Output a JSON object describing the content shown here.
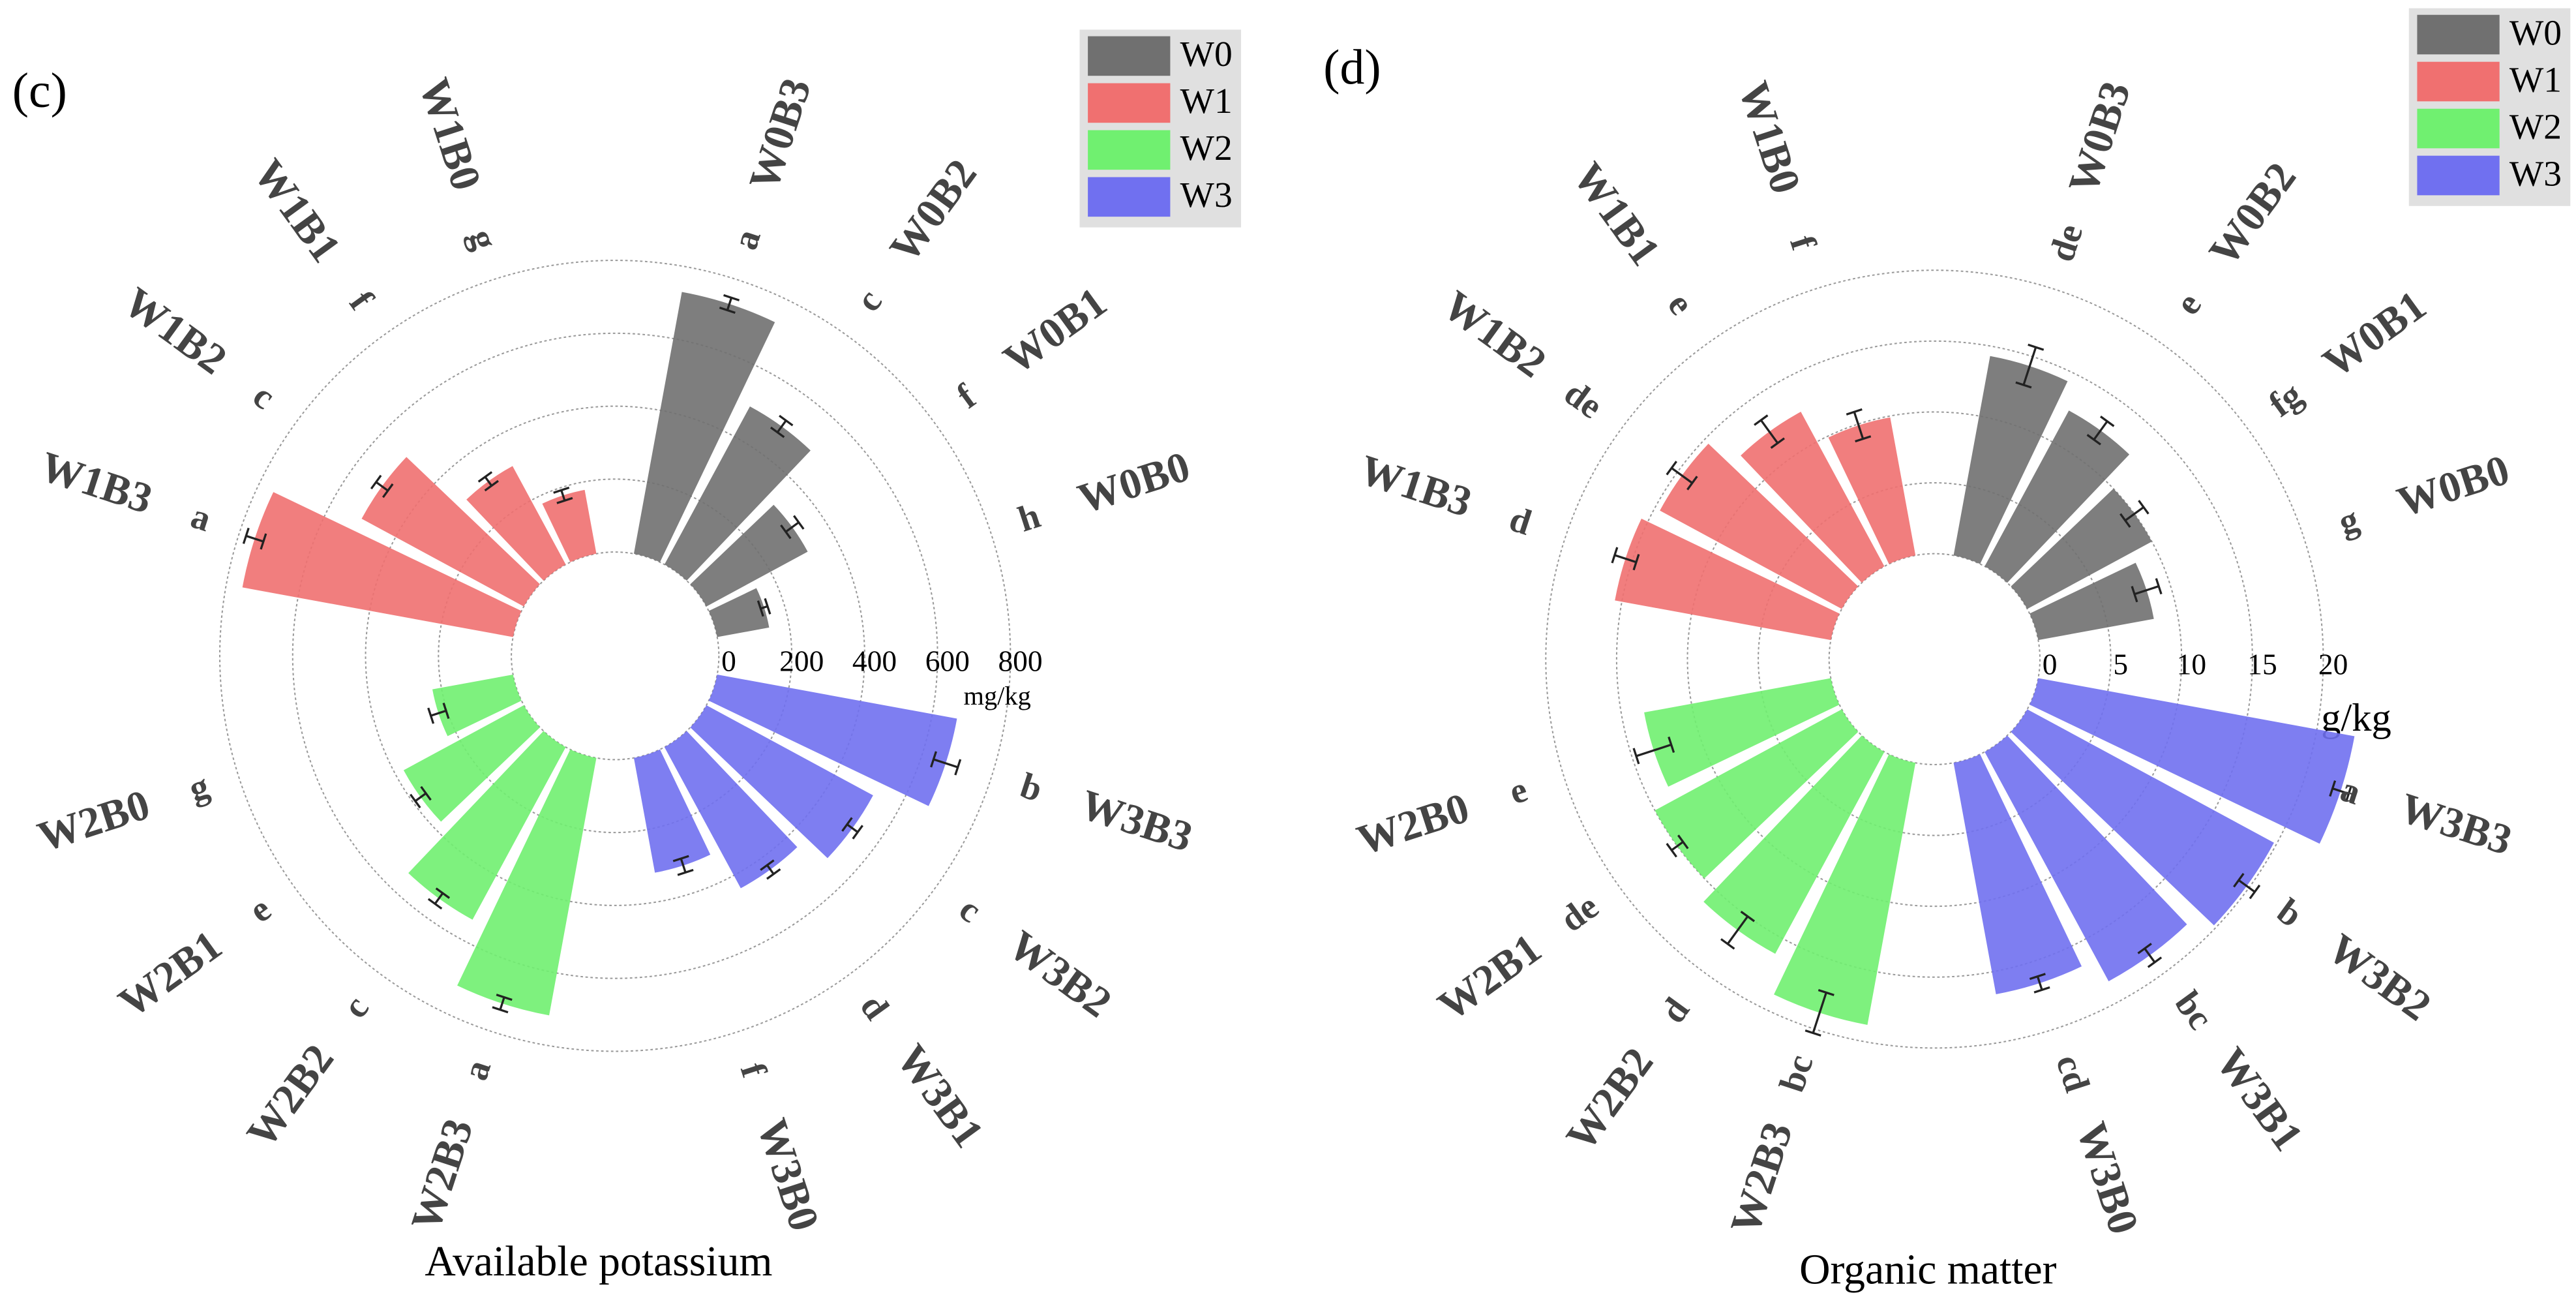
{
  "chart_data": [
    {
      "type": "polar_bar",
      "panel": "(c)",
      "title": "Available potassium",
      "unit": "mg/kg",
      "rlim": [
        0,
        800
      ],
      "rticks": [
        0,
        200,
        400,
        600,
        800
      ],
      "grid": true,
      "legend": "upper right",
      "series": [
        {
          "name": "W0",
          "color": "#707070",
          "categories": [
            "W0B3",
            "W0B2",
            "W0B1",
            "W0B0"
          ],
          "values": [
            730,
            493,
            316,
            145
          ],
          "errors": [
            18,
            20,
            22,
            10
          ],
          "letters": [
            "a",
            "c",
            "f",
            "h"
          ]
        },
        {
          "name": "W1",
          "color": "#f07070",
          "categories": [
            "W1B3",
            "W1B2",
            "W1B1",
            "W1B0"
          ],
          "values": [
            755,
            506,
            307,
            178
          ],
          "errors": [
            25,
            20,
            15,
            15
          ],
          "letters": [
            "a",
            "c",
            "f",
            "g"
          ]
        },
        {
          "name": "W2",
          "color": "#70f070",
          "categories": [
            "W2B3",
            "W2B2",
            "W2B1",
            "W2B0"
          ],
          "values": [
            718,
            538,
            375,
            225
          ],
          "errors": [
            18,
            18,
            18,
            22
          ],
          "letters": [
            "a",
            "c",
            "e",
            "g"
          ]
        },
        {
          "name": "W3",
          "color": "#7070f0",
          "categories": [
            "W3B3",
            "W3B2",
            "W3B1",
            "W3B0"
          ],
          "values": [
            669,
            520,
            440,
            320
          ],
          "errors": [
            35,
            18,
            15,
            20
          ],
          "letters": [
            "b",
            "c",
            "d",
            "f"
          ]
        }
      ]
    },
    {
      "type": "polar_bar",
      "panel": "(d)",
      "title": "Organic matter",
      "unit": "g/kg",
      "rlim": [
        0,
        20
      ],
      "rticks": [
        0,
        5,
        10,
        15,
        20
      ],
      "grid": true,
      "legend": "upper right",
      "series": [
        {
          "name": "W0",
          "color": "#707070",
          "categories": [
            "W0B3",
            "W0B2",
            "W0B1",
            "W0B0"
          ],
          "values": [
            14.3,
            12.5,
            10.0,
            8.3
          ],
          "errors": [
            1.4,
            0.8,
            0.8,
            0.9
          ],
          "letters": [
            "de",
            "e",
            "fg",
            "g"
          ]
        },
        {
          "name": "W1",
          "color": "#f07070",
          "categories": [
            "W1B3",
            "W1B2",
            "W1B1",
            "W1B0"
          ],
          "values": [
            15.5,
            14.6,
            12.4,
            9.9
          ],
          "errors": [
            0.8,
            0.9,
            1.0,
            1.0
          ],
          "letters": [
            "d",
            "de",
            "e",
            "f"
          ]
        },
        {
          "name": "W2",
          "color": "#70f070",
          "categories": [
            "W2B3",
            "W2B2",
            "W2B1",
            "W2B0"
          ],
          "values": [
            18.8,
            16.2,
            15.0,
            13.4
          ],
          "errors": [
            1.5,
            1.2,
            0.5,
            1.3
          ],
          "letters": [
            "bc",
            "d",
            "de",
            "e"
          ]
        },
        {
          "name": "W3",
          "color": "#7070f0",
          "categories": [
            "W3B3",
            "W3B2",
            "W3B1",
            "W3B0"
          ],
          "values": [
            22.7,
            19.8,
            18.4,
            16.6
          ],
          "errors": [
            0.6,
            0.7,
            0.6,
            0.5
          ],
          "letters": [
            "a",
            "b",
            "bc",
            "cd"
          ]
        }
      ]
    }
  ]
}
